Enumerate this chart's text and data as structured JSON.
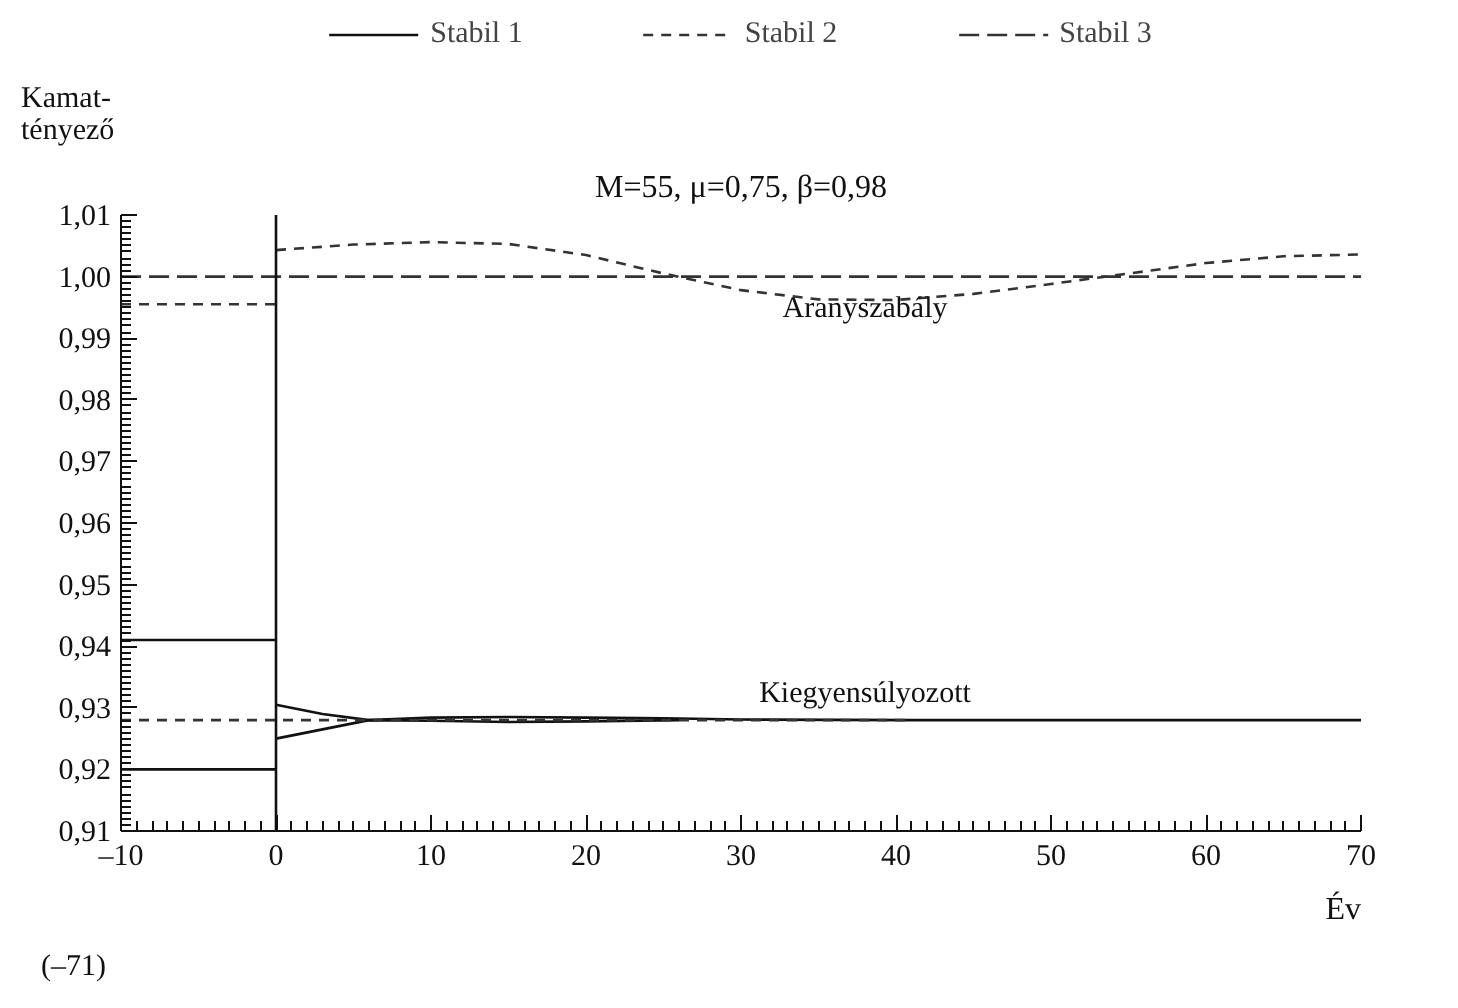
{
  "chart_data": {
    "type": "line",
    "title": "M=55, μ=0,75, β=0,98",
    "xlabel": "Év",
    "ylabel": "Kamat-\ntényező",
    "xlim": [
      -10,
      70
    ],
    "xticks": [
      {
        "value": -10,
        "label": "–10"
      },
      0,
      10,
      20,
      30,
      40,
      50,
      60,
      70
    ],
    "ylim": [
      0.91,
      1.01
    ],
    "yticks": [
      {
        "value": 0.91,
        "label": "0,91"
      },
      {
        "value": 0.92,
        "label": "0,92"
      },
      {
        "value": 0.93,
        "label": "0,93"
      },
      {
        "value": 0.94,
        "label": "0,94"
      },
      {
        "value": 0.95,
        "label": "0,95"
      },
      {
        "value": 0.96,
        "label": "0,96"
      },
      {
        "value": 0.97,
        "label": "0,97"
      },
      {
        "value": 0.98,
        "label": "0,98"
      },
      {
        "value": 0.99,
        "label": "0,99"
      },
      {
        "value": 1.0,
        "label": "1,00"
      },
      {
        "value": 1.01,
        "label": "1,01"
      }
    ],
    "grid": false,
    "legend": "top",
    "marker": "none",
    "series": [
      {
        "name": "Stabil 1",
        "color": "#111111",
        "line_style": "solid",
        "x": [
          0,
          3,
          6,
          10,
          15,
          20,
          25,
          30,
          41,
          70
        ],
        "values": [
          0.9305,
          0.929,
          0.928,
          0.9284,
          0.9285,
          0.9284,
          0.9283,
          0.9281,
          0.928,
          0.928
        ]
      },
      {
        "color": "#111111",
        "line_style": "solid",
        "x": [
          0,
          3,
          6,
          10,
          15,
          20,
          26
        ],
        "values": [
          0.925,
          0.9265,
          0.928,
          0.9279,
          0.9277,
          0.9278,
          0.928
        ]
      },
      {
        "color": "#111111",
        "line_style": "solid",
        "x": [
          -10,
          0
        ],
        "values": [
          0.941,
          0.941
        ]
      },
      {
        "color": "#111111",
        "line_style": "solid",
        "x": [
          -10,
          0
        ],
        "values": [
          0.92,
          0.92
        ]
      },
      {
        "name": "Stabil 2",
        "color": "#333333",
        "line_style": "dashed",
        "x": [
          0,
          5,
          10,
          15,
          20,
          25,
          30,
          35,
          40,
          45,
          50,
          55,
          60,
          65,
          70
        ],
        "values": [
          1.0043,
          1.0052,
          1.0056,
          1.0053,
          1.0035,
          1.0005,
          0.9978,
          0.9963,
          0.9962,
          0.9972,
          0.9988,
          1.0005,
          1.0022,
          1.0033,
          1.0036
        ]
      },
      {
        "color": "#333333",
        "line_style": "dashed",
        "x": [
          -10,
          0
        ],
        "values": [
          0.9955,
          0.9955
        ]
      },
      {
        "color": "#333333",
        "line_style": "dashed",
        "x": [
          -10,
          0,
          10,
          20,
          30,
          41
        ],
        "values": [
          0.928,
          0.928,
          0.928,
          0.928,
          0.928,
          0.928
        ]
      },
      {
        "name": "Stabil 3",
        "color": "#333333",
        "line_style": "longdash",
        "x": [
          -10,
          70
        ],
        "values": [
          1.0,
          1.0
        ]
      }
    ],
    "ref_lines": [
      {
        "axis": "x",
        "value": 0,
        "color": "#111111",
        "line_style": "solid"
      }
    ],
    "annotations": [
      {
        "text": "Aranyszabály",
        "x": 38,
        "y": 1.0
      },
      {
        "text": "Kiegyensúlyozott",
        "x": 38,
        "y": 0.928
      },
      "(–71)"
    ]
  }
}
